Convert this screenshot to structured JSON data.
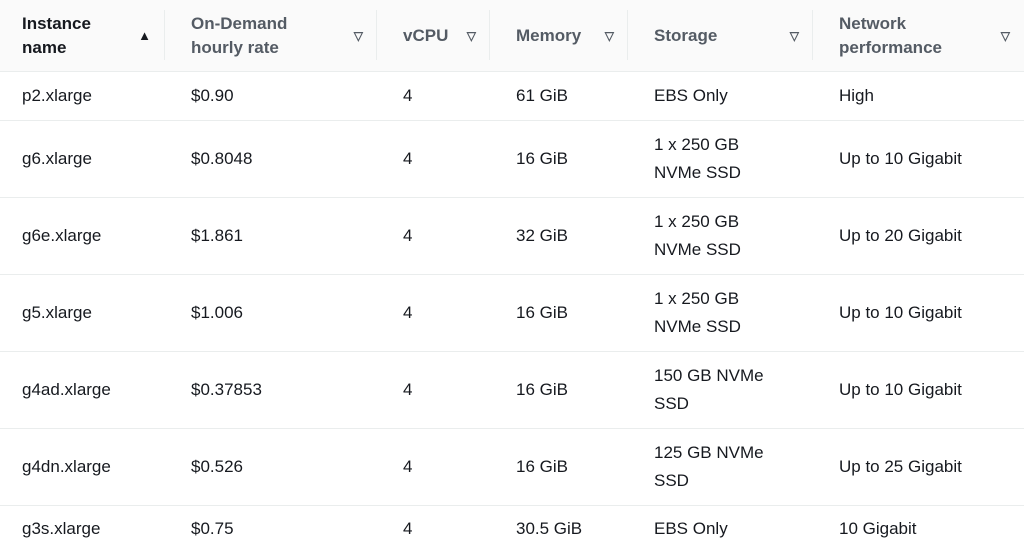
{
  "columns": [
    {
      "label_1": "Instance",
      "label_2": "name",
      "sort_icon": "sort-ascending-icon",
      "sorted": true
    },
    {
      "label_1": "On-Demand",
      "label_2": "hourly rate",
      "sort_icon": "sort-descending-outline-icon"
    },
    {
      "label_1": "vCPU",
      "label_2": "",
      "sort_icon": "sort-descending-outline-icon"
    },
    {
      "label_1": "Memory",
      "label_2": "",
      "sort_icon": "sort-descending-outline-icon"
    },
    {
      "label_1": "Storage",
      "label_2": "",
      "sort_icon": "sort-descending-outline-icon"
    },
    {
      "label_1": "Network",
      "label_2": "performance",
      "sort_icon": "sort-descending-outline-icon"
    }
  ],
  "rows": [
    {
      "name": "p2.xlarge",
      "rate": "$0.90",
      "vcpu": "4",
      "memory": "61 GiB",
      "storage_1": "EBS Only",
      "storage_2": "",
      "network": "High"
    },
    {
      "name": "g6.xlarge",
      "rate": "$0.8048",
      "vcpu": "4",
      "memory": "16 GiB",
      "storage_1": "1 x 250 GB",
      "storage_2": "NVMe SSD",
      "network": "Up to 10 Gigabit"
    },
    {
      "name": "g6e.xlarge",
      "rate": "$1.861",
      "vcpu": "4",
      "memory": "32 GiB",
      "storage_1": "1 x 250 GB",
      "storage_2": "NVMe SSD",
      "network": "Up to 20 Gigabit"
    },
    {
      "name": "g5.xlarge",
      "rate": "$1.006",
      "vcpu": "4",
      "memory": "16 GiB",
      "storage_1": "1 x 250 GB",
      "storage_2": "NVMe SSD",
      "network": "Up to 10 Gigabit"
    },
    {
      "name": "g4ad.xlarge",
      "rate": "$0.37853",
      "vcpu": "4",
      "memory": "16 GiB",
      "storage_1": "150 GB NVMe",
      "storage_2": "SSD",
      "network": "Up to 10 Gigabit"
    },
    {
      "name": "g4dn.xlarge",
      "rate": "$0.526",
      "vcpu": "4",
      "memory": "16 GiB",
      "storage_1": "125 GB NVMe",
      "storage_2": "SSD",
      "network": "Up to 25 Gigabit"
    },
    {
      "name": "g3s.xlarge",
      "rate": "$0.75",
      "vcpu": "4",
      "memory": "30.5 GiB",
      "storage_1": "EBS Only",
      "storage_2": "",
      "network": "10 Gigabit"
    }
  ]
}
